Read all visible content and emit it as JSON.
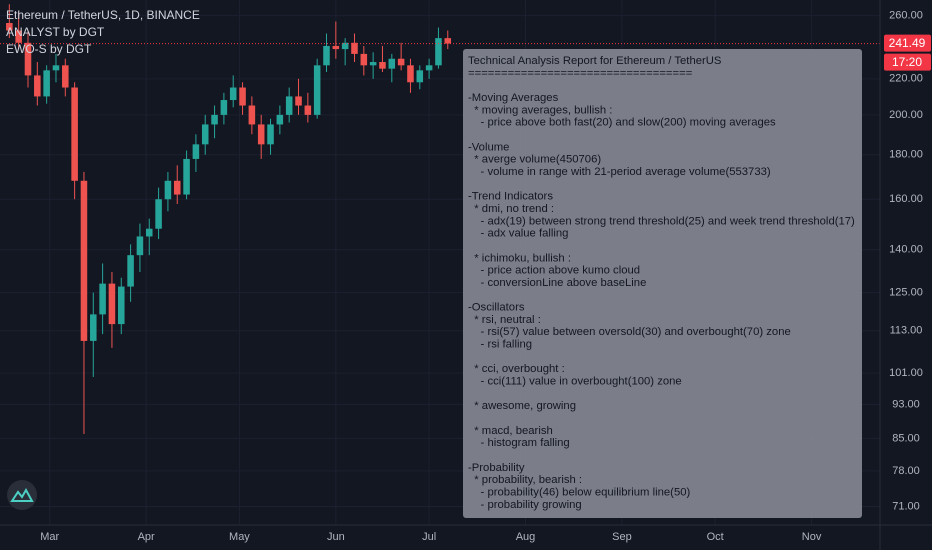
{
  "chart_data": {
    "type": "candlestick",
    "title": "Ethereum / TetherUS, 1D, BINANCE",
    "indicators": [
      "ANALYST by DGT",
      "EWO-S by DGT"
    ],
    "log_scale": true,
    "grid": true,
    "up_color": "#26a69a",
    "down_color": "#ef5350",
    "x": [
      47,
      50,
      53,
      56,
      59,
      62,
      65,
      68,
      71,
      74,
      77,
      80,
      83,
      86,
      89,
      92,
      95,
      98,
      101,
      104,
      107,
      110,
      113,
      116,
      119,
      122,
      125,
      128,
      131,
      134,
      137,
      140,
      143,
      146,
      149,
      152,
      155,
      158,
      161,
      164,
      167,
      170,
      173,
      176,
      179,
      182,
      185,
      188
    ],
    "open": [
      255,
      250,
      242,
      222,
      210,
      225,
      228,
      215,
      168,
      110,
      118,
      128,
      115,
      127,
      138,
      145,
      148,
      160,
      168,
      162,
      178,
      185,
      195,
      200,
      208,
      215,
      205,
      195,
      185,
      195,
      200,
      210,
      205,
      200,
      228,
      240,
      238,
      242,
      235,
      228,
      230,
      226,
      232,
      228,
      218,
      225,
      228,
      245
    ],
    "high": [
      268,
      262,
      250,
      230,
      228,
      235,
      232,
      218,
      172,
      125,
      135,
      132,
      130,
      142,
      150,
      152,
      165,
      172,
      175,
      182,
      190,
      200,
      205,
      212,
      222,
      218,
      210,
      200,
      198,
      205,
      215,
      220,
      212,
      232,
      248,
      256,
      245,
      248,
      240,
      236,
      240,
      235,
      242,
      232,
      228,
      232,
      252,
      250
    ],
    "low": [
      245,
      238,
      215,
      205,
      206,
      218,
      210,
      160,
      86,
      100,
      112,
      108,
      112,
      122,
      132,
      138,
      144,
      155,
      158,
      160,
      172,
      180,
      188,
      195,
      204,
      200,
      190,
      178,
      180,
      190,
      196,
      200,
      196,
      198,
      224,
      232,
      228,
      230,
      222,
      220,
      224,
      218,
      225,
      212,
      214,
      220,
      226,
      238
    ],
    "close": [
      250,
      242,
      222,
      210,
      225,
      228,
      215,
      168,
      110,
      118,
      128,
      115,
      127,
      138,
      145,
      148,
      160,
      168,
      162,
      178,
      185,
      195,
      200,
      208,
      215,
      205,
      195,
      185,
      195,
      200,
      210,
      205,
      200,
      228,
      240,
      238,
      242,
      235,
      228,
      230,
      226,
      232,
      228,
      218,
      225,
      228,
      245,
      241.49
    ],
    "xlim": [
      44,
      327
    ],
    "xticks": [
      {
        "value": 60,
        "label": "Mar"
      },
      {
        "value": 91,
        "label": "Apr"
      },
      {
        "value": 121,
        "label": "May"
      },
      {
        "value": 152,
        "label": "Jun"
      },
      {
        "value": 182,
        "label": "Jul"
      },
      {
        "value": 213,
        "label": "Aug"
      },
      {
        "value": 244,
        "label": "Sep"
      },
      {
        "value": 274,
        "label": "Oct"
      },
      {
        "value": 305,
        "label": "Nov"
      }
    ],
    "ylim": [
      67.6,
      271
    ],
    "yticks": [
      {
        "value": 260,
        "label": "260.00"
      },
      {
        "value": 220,
        "label": "220.00"
      },
      {
        "value": 200,
        "label": "200.00"
      },
      {
        "value": 180,
        "label": "180.00"
      },
      {
        "value": 160,
        "label": "160.00"
      },
      {
        "value": 140,
        "label": "140.00"
      },
      {
        "value": 125,
        "label": "125.00"
      },
      {
        "value": 113,
        "label": "113.00"
      },
      {
        "value": 101,
        "label": "101.00"
      },
      {
        "value": 93,
        "label": "93.00"
      },
      {
        "value": 85,
        "label": "85.00"
      },
      {
        "value": 78,
        "label": "78.00"
      },
      {
        "value": 71,
        "label": "71.00"
      }
    ],
    "last_price": {
      "value": 241.49,
      "label": "241.49"
    },
    "countdown": "17:20",
    "price_color": "#f23645"
  },
  "report": {
    "title": "Technical Analysis Report for Ethereum / TetherUS",
    "rule": "==================================",
    "blocks": [
      [
        "-Moving Averages",
        "  * moving averages, bullish :",
        "    - price above both fast(20) and slow(200) moving averages"
      ],
      [
        "-Volume",
        "  * averge volume(450706)",
        "    - volume in range with 21-period average volume(553733)"
      ],
      [
        "-Trend Indicators",
        "  * dmi, no trend :",
        "    - adx(19) between strong trend threshold(25) and week trend threshold(17)",
        "    - adx value falling"
      ],
      [
        "  * ichimoku, bullish :",
        "    - price action above kumo cloud",
        "    - conversionLine above baseLine"
      ],
      [
        "-Oscillators",
        "  * rsi, neutral :",
        "    - rsi(57) value between oversold(30) and overbought(70) zone",
        "    - rsi falling"
      ],
      [
        "  * cci, overbought :",
        "    - cci(111) value in overbought(100) zone"
      ],
      [
        "  * awesome, growing"
      ],
      [
        "  * macd, bearish",
        "    - histogram falling"
      ],
      [
        "-Probability",
        "  * probability, bearish :",
        "    - probability(46) below equilibrium line(50)",
        "    - probability growing"
      ]
    ]
  }
}
